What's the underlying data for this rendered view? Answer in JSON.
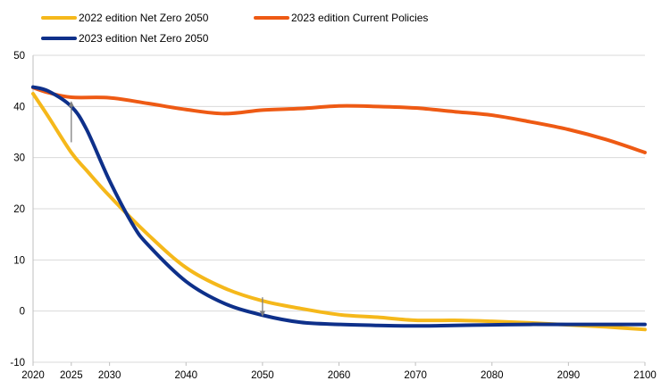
{
  "chart_data": {
    "type": "line",
    "title": "",
    "xlabel": "",
    "ylabel": "",
    "xlim": [
      2020,
      2100
    ],
    "ylim": [
      -10,
      50
    ],
    "grid": true,
    "legend_position": "top-left",
    "x_ticks": [
      2020,
      2025,
      2030,
      2040,
      2050,
      2060,
      2070,
      2080,
      2090,
      2100
    ],
    "y_ticks": [
      -10,
      0,
      10,
      20,
      30,
      40,
      50
    ],
    "x_tick_labels": [
      "2020",
      "2025",
      "2030",
      "2040",
      "2050",
      "2060",
      "2070",
      "2080",
      "2090",
      "2100"
    ],
    "y_tick_labels": [
      "-10",
      "0",
      "10",
      "20",
      "30",
      "40",
      "50"
    ],
    "series": [
      {
        "name": "2022 edition Net Zero 2050",
        "color": "#F5B81B",
        "x": [
          2020,
          2022,
          2025,
          2027,
          2030,
          2035,
          2040,
          2045,
          2050,
          2055,
          2060,
          2065,
          2070,
          2075,
          2080,
          2085,
          2090,
          2095,
          2100
        ],
        "y": [
          42.5,
          38,
          31,
          27.5,
          22.5,
          15,
          8.5,
          4.5,
          2,
          0.5,
          -0.7,
          -1.2,
          -1.8,
          -1.8,
          -2,
          -2.3,
          -2.7,
          -3.1,
          -3.6
        ]
      },
      {
        "name": "2023 edition Current Policies",
        "color": "#EE5A14",
        "x": [
          2020,
          2022,
          2025,
          2030,
          2035,
          2040,
          2045,
          2050,
          2055,
          2060,
          2065,
          2070,
          2075,
          2080,
          2085,
          2090,
          2095,
          2100
        ],
        "y": [
          43.7,
          42.7,
          41.8,
          41.7,
          40.6,
          39.4,
          38.6,
          39.3,
          39.6,
          40.1,
          40,
          39.7,
          39,
          38.3,
          37,
          35.5,
          33.5,
          31
        ]
      },
      {
        "name": "2023 edition Net Zero 2050",
        "color": "#0E308A",
        "x": [
          2020,
          2022,
          2025,
          2027,
          2030,
          2033,
          2035,
          2040,
          2045,
          2050,
          2055,
          2060,
          2065,
          2070,
          2075,
          2080,
          2085,
          2090,
          2095,
          2100
        ],
        "y": [
          43.8,
          43,
          40,
          35.5,
          25.5,
          17,
          13,
          5.8,
          1.5,
          -0.8,
          -2.2,
          -2.6,
          -2.8,
          -2.9,
          -2.8,
          -2.7,
          -2.6,
          -2.6,
          -2.6,
          -2.6
        ]
      }
    ],
    "annotations": [
      {
        "type": "arrow",
        "x": 2025,
        "from_y": 33,
        "to_y": 40.5,
        "color": "#7F7F7F"
      },
      {
        "type": "arrow",
        "x": 2050,
        "from_y": 2.7,
        "to_y": -0.5,
        "color": "#7F7F7F"
      }
    ]
  }
}
